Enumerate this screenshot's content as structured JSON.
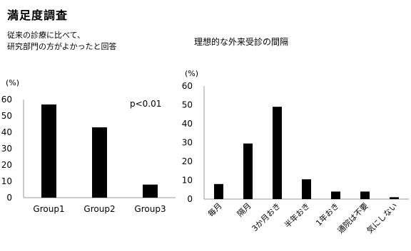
{
  "title": "満足度調査",
  "chart_data": [
    {
      "type": "bar",
      "title": "従来の診療に比べて、研究部門の方がよかったと回答",
      "title_lines": [
        "従来の診療に比べて、",
        "研究部門の方がよかったと回答"
      ],
      "ylabel": "(%)",
      "categories": [
        "Group1",
        "Group2",
        "Group3"
      ],
      "values": [
        57,
        43,
        8
      ],
      "ylim": [
        0,
        60
      ],
      "yticks": [
        0,
        10,
        20,
        30,
        40,
        50,
        60
      ],
      "annotation": "p<0.01",
      "bar_color": "#000000"
    },
    {
      "type": "bar",
      "title": "理想的な外来受診の間隔",
      "ylabel": "(%)",
      "categories": [
        "毎月",
        "隔月",
        "3か月おき",
        "半年おき",
        "1年おき",
        "通院は不要",
        "気にしない"
      ],
      "values": [
        8,
        29.5,
        49,
        10.5,
        4,
        4,
        1
      ],
      "ylim": [
        0,
        60
      ],
      "yticks": [
        0,
        10,
        20,
        30,
        40,
        50,
        60
      ],
      "bar_color": "#000000"
    }
  ]
}
